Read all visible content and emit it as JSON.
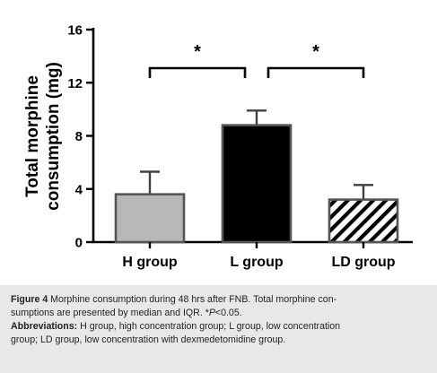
{
  "chart_data": {
    "type": "bar",
    "title": "",
    "xlabel": "",
    "ylabel": [
      "Total morphine",
      "consumption (mg)"
    ],
    "ylim": [
      0,
      16
    ],
    "yticks": [
      0,
      4,
      8,
      12,
      16
    ],
    "ytick_labels": [
      "0",
      "4",
      "8",
      "12",
      "16"
    ],
    "categories": [
      "H group",
      "L group",
      "LD group"
    ],
    "values": [
      3.6,
      8.8,
      3.2
    ],
    "error_upper": [
      5.3,
      9.9,
      4.3
    ],
    "bar_fill_colors": [
      "#b8b8b8",
      "#000000",
      "hatch-black-white"
    ],
    "grid": false,
    "legend": "none",
    "significance": [
      {
        "from": 0,
        "to": 1,
        "label": "*"
      },
      {
        "from": 1,
        "to": 2,
        "label": "*"
      }
    ]
  },
  "caption": {
    "figure_label": "Figure 4",
    "line1_rest": " Morphine consumption during 48 hrs after FNB. Total morphine con-",
    "line2_pre": "sumptions are presented by median and IQR. *",
    "line2_italic": "P",
    "line2_post": "<0.05.",
    "abbrev_label": "Abbreviations:",
    "abbrev_line1_rest": " H group, high concentration group; L group, low concentration",
    "abbrev_line2": "group; LD group, low concentration with dexmedetomidine group."
  }
}
